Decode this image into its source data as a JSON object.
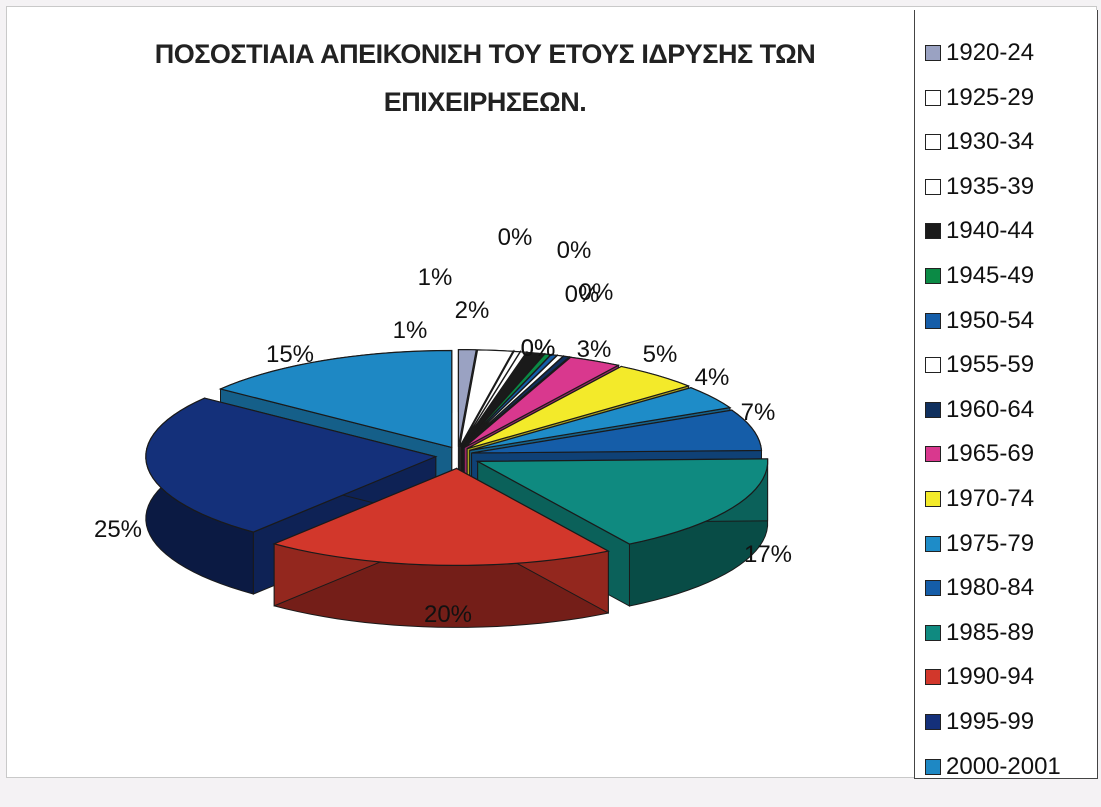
{
  "chart_data": {
    "type": "pie",
    "title_line1": "ΠΟΣΟΣΤΙΑΙΑ ΑΠΕΙΚΟΝΙΣΗ ΤΟΥ ΕΤΟΥΣ ΙΔΡΥΣΗΣ ΤΩΝ",
    "title_line2": "ΕΠΙΧΕΙΡΗΣΕΩΝ.",
    "categories": [
      "1920-24",
      "1925-29",
      "1930-34",
      "1935-39",
      "1940-44",
      "1945-49",
      "1950-54",
      "1955-59",
      "1960-64",
      "1965-69",
      "1970-74",
      "1975-79",
      "1980-84",
      "1985-89",
      "1990-94",
      "1995-99",
      "2000-2001"
    ],
    "values": [
      1,
      2,
      0,
      0,
      1,
      0,
      0,
      0,
      0,
      3,
      5,
      4,
      7,
      17,
      20,
      25,
      15
    ],
    "labels": [
      "1%",
      "2%",
      "0%",
      "0%",
      "1%",
      "0%",
      "0%",
      "0%",
      "0%",
      "3%",
      "5%",
      "4%",
      "7%",
      "17%",
      "20%",
      "25%",
      "15%"
    ],
    "colors": [
      "#9aa2c2",
      "#ffffff",
      "#ffffff",
      "#ffffff",
      "#1a1a1a",
      "#0b8a45",
      "#155da8",
      "#ffffff",
      "#10305e",
      "#d9388e",
      "#f3ea2a",
      "#1e8cc8",
      "#155da8",
      "#0f8a80",
      "#d2372b",
      "#14307a",
      "#1e88c4"
    ],
    "legend_placement": "right"
  }
}
